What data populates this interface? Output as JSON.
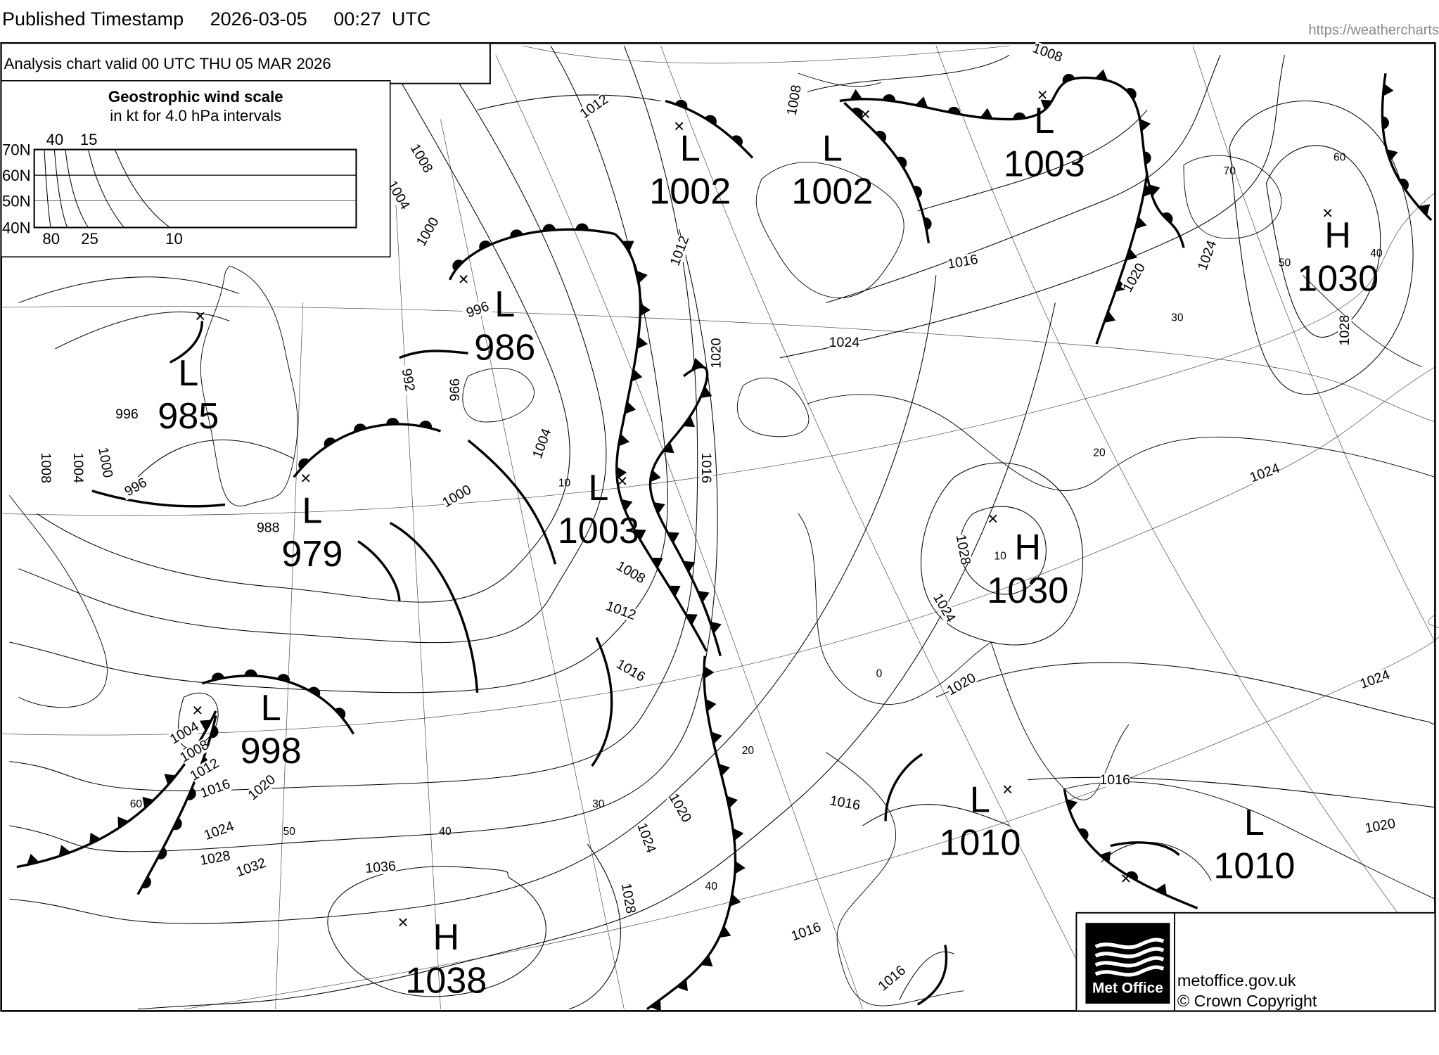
{
  "header": {
    "published_label": "Published Timestamp",
    "date": "2026-03-05",
    "time": "00:27  UTC",
    "url": "https://weathercharts"
  },
  "chart": {
    "title": "Analysis chart  valid 00 UTC THU 05  MAR 2026"
  },
  "wind_scale": {
    "title": "Geostrophic wind scale",
    "subtitle": "in kt for 4.0 hPa intervals",
    "lat_labels": [
      "70N",
      "60N",
      "50N",
      "40N"
    ],
    "top_labels": [
      "40",
      "15"
    ],
    "bottom_labels": [
      "80",
      "25",
      "10"
    ]
  },
  "pressure_systems": [
    {
      "type": "L",
      "pressure": "985"
    },
    {
      "type": "L",
      "pressure": "986"
    },
    {
      "type": "L",
      "pressure": "979"
    },
    {
      "type": "L",
      "pressure": "998"
    },
    {
      "type": "L",
      "pressure": "1002"
    },
    {
      "type": "L",
      "pressure": "1002"
    },
    {
      "type": "L",
      "pressure": "1003"
    },
    {
      "type": "L",
      "pressure": "1003"
    },
    {
      "type": "H",
      "pressure": "1030"
    },
    {
      "type": "H",
      "pressure": "1030"
    },
    {
      "type": "H",
      "pressure": "1038"
    },
    {
      "type": "L",
      "pressure": "1010"
    },
    {
      "type": "L",
      "pressure": "1010"
    }
  ],
  "isobar_labels": [
    "1012",
    "1008",
    "1008",
    "1008",
    "1004",
    "1000",
    "996",
    "992",
    "996",
    "996",
    "1000",
    "1004",
    "1008",
    "988",
    "996",
    "1000",
    "1004",
    "1008",
    "1012",
    "1016",
    "1020",
    "1024",
    "1016",
    "1012",
    "1016",
    "1020",
    "1024",
    "1028",
    "1032",
    "1036",
    "1004",
    "1008",
    "1012",
    "1016",
    "1020",
    "1024",
    "1028",
    "1020",
    "1024",
    "1028",
    "1016",
    "1016",
    "1016",
    "1020",
    "1024",
    "1024",
    "1020",
    "1028",
    "1024",
    "1016"
  ],
  "lat_lon_labels": [
    "60",
    "50",
    "40",
    "30",
    "20",
    "10",
    "40",
    "30",
    "20",
    "10",
    "0",
    "70",
    "60",
    "50",
    "40"
  ],
  "footer": {
    "logo_text": "Met Office",
    "site": "metoffice.gov.uk",
    "copyright": "© Crown Copyright"
  },
  "colors": {
    "ink": "#000000",
    "background": "#ffffff",
    "url_text": "#888888"
  }
}
